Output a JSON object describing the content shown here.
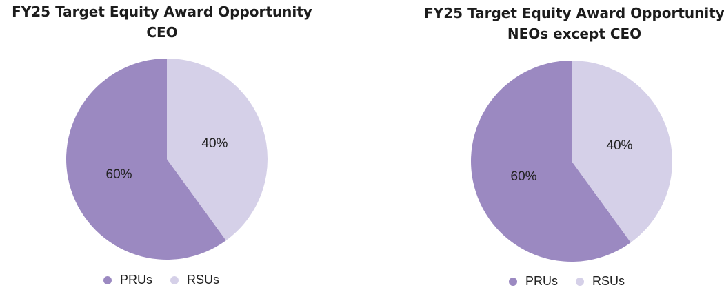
{
  "colors": {
    "PRUs": "#9b89c1",
    "RSUs": "#d5d0e8"
  },
  "chart_data": [
    {
      "type": "pie",
      "title": "FY25 Target Equity Award Opportunity",
      "subtitle": "CEO",
      "categories": [
        "PRUs",
        "RSUs"
      ],
      "values": [
        60,
        40
      ],
      "value_labels": [
        "60%",
        "40%"
      ],
      "legend": "bottom"
    },
    {
      "type": "pie",
      "title": "FY25 Target Equity Award Opportunity",
      "subtitle": "NEOs except CEO",
      "categories": [
        "PRUs",
        "RSUs"
      ],
      "values": [
        60,
        40
      ],
      "value_labels": [
        "60%",
        "40%"
      ],
      "legend": "bottom"
    }
  ]
}
